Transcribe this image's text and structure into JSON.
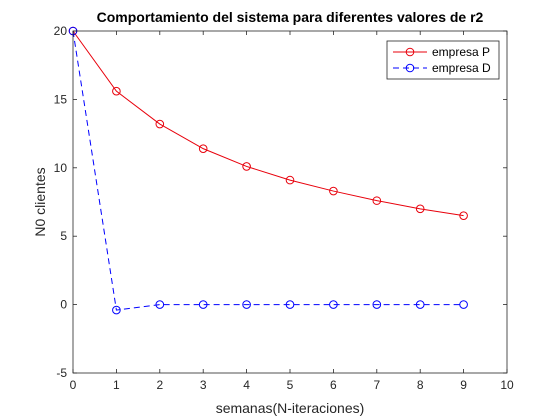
{
  "chart_data": {
    "type": "line",
    "title": "Comportamiento del sistema para diferentes valores de r2",
    "xlabel": "semanas(N-iteraciones)",
    "ylabel": "N0 clientes",
    "xlim": [
      0,
      10
    ],
    "ylim": [
      -5,
      20
    ],
    "xticks": [
      "0",
      "1",
      "2",
      "3",
      "4",
      "5",
      "6",
      "7",
      "8",
      "9",
      "10"
    ],
    "yticks": [
      "-5",
      "0",
      "5",
      "10",
      "15",
      "20"
    ],
    "grid": false,
    "legend_position": "top-right",
    "x": [
      0,
      1,
      2,
      3,
      4,
      5,
      6,
      7,
      8,
      9
    ],
    "series": [
      {
        "name": "empresa P",
        "color": "#e8000b",
        "line_style": "solid",
        "marker": "circle",
        "values": [
          20,
          15.6,
          13.2,
          11.4,
          10.1,
          9.1,
          8.3,
          7.6,
          7.0,
          6.5
        ]
      },
      {
        "name": "empresa D",
        "color": "#0000ff",
        "line_style": "dashed",
        "marker": "circle",
        "values": [
          20,
          -0.4,
          0,
          0,
          0,
          0,
          0,
          0,
          0,
          0
        ]
      }
    ]
  }
}
